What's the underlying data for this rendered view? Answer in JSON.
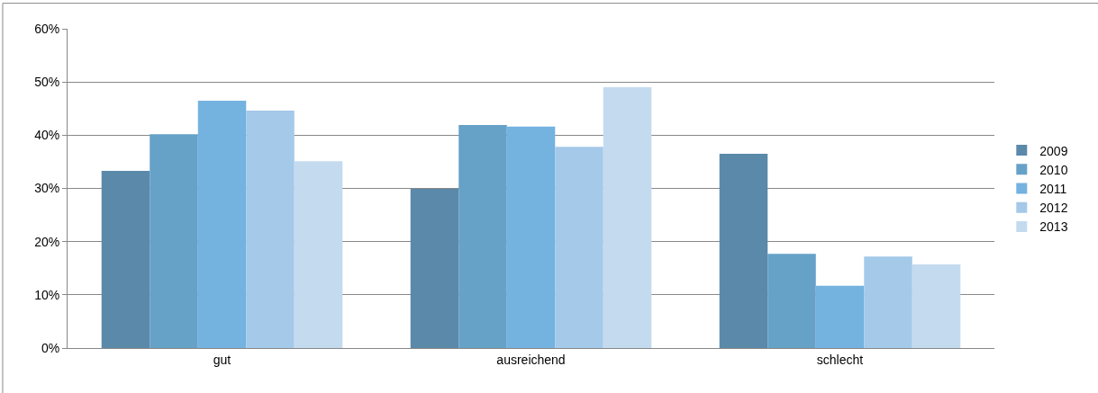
{
  "chart_data": {
    "type": "bar",
    "categories": [
      "gut",
      "ausreichend",
      "schlecht"
    ],
    "series": [
      {
        "name": "2009",
        "color": "#5a89aa",
        "values": [
          33.3,
          29.9,
          36.5
        ]
      },
      {
        "name": "2010",
        "color": "#66a1c8",
        "values": [
          40.2,
          41.9,
          17.7
        ]
      },
      {
        "name": "2011",
        "color": "#74b2e0",
        "values": [
          46.5,
          41.6,
          11.7
        ]
      },
      {
        "name": "2012",
        "color": "#a4c9e9",
        "values": [
          44.6,
          37.8,
          17.2
        ]
      },
      {
        "name": "2013",
        "color": "#c4dbef",
        "values": [
          35.1,
          49.0,
          15.7
        ]
      }
    ],
    "ylim": [
      0,
      60
    ],
    "yticks": [
      {
        "value": 0,
        "label": "0%"
      },
      {
        "value": 10,
        "label": "10%"
      },
      {
        "value": 20,
        "label": "20%"
      },
      {
        "value": 30,
        "label": "30%"
      },
      {
        "value": 40,
        "label": "40%"
      },
      {
        "value": 50,
        "label": "50%"
      },
      {
        "value": 60,
        "label": "60%"
      }
    ],
    "grid": "y",
    "legend": "right"
  }
}
